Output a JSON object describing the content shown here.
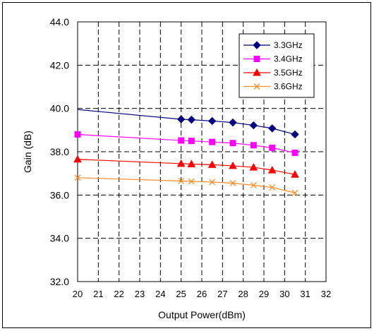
{
  "chart_data": {
    "type": "line",
    "title": "",
    "xlabel": "Output Power(dBm)",
    "ylabel": "Gain (dB)",
    "xlim": [
      20,
      32
    ],
    "ylim": [
      32.0,
      44.0
    ],
    "xticks": [
      "20",
      "21",
      "22",
      "23",
      "24",
      "25",
      "26",
      "27",
      "28",
      "29",
      "30",
      "31",
      "32"
    ],
    "yticks": [
      "32.0",
      "34.0",
      "36.0",
      "38.0",
      "40.0",
      "42.0",
      "44.0"
    ],
    "grid": true,
    "legend_position": "top-right",
    "series": [
      {
        "name": "3.3GHz",
        "color": "#000080",
        "marker": "diamond",
        "x": [
          20,
          25,
          25.5,
          26.5,
          27.5,
          28.5,
          29.4,
          30.5
        ],
        "y": [
          39.95,
          39.5,
          39.48,
          39.42,
          39.35,
          39.22,
          39.08,
          38.8
        ],
        "markers_at": [
          25,
          25.5,
          26.5,
          27.5,
          28.5,
          29.4,
          30.5
        ]
      },
      {
        "name": "3.4GHz",
        "color": "#ff00ff",
        "marker": "square",
        "x": [
          20,
          25,
          25.5,
          26.5,
          27.5,
          28.5,
          29.4,
          30.5
        ],
        "y": [
          38.8,
          38.52,
          38.5,
          38.45,
          38.4,
          38.3,
          38.18,
          37.95
        ],
        "markers_at": [
          20,
          25,
          25.5,
          26.5,
          27.5,
          28.5,
          29.4,
          30.5
        ]
      },
      {
        "name": "3.5GHz",
        "color": "#ff0000",
        "marker": "triangle",
        "x": [
          20,
          25,
          25.5,
          26.5,
          27.5,
          28.5,
          29.4,
          30.5
        ],
        "y": [
          37.65,
          37.45,
          37.43,
          37.4,
          37.35,
          37.28,
          37.15,
          36.95
        ],
        "markers_at": [
          20,
          25,
          25.5,
          26.5,
          27.5,
          28.5,
          29.4,
          30.5
        ]
      },
      {
        "name": "3.6GHz",
        "color": "#ff8c28",
        "marker": "x",
        "x": [
          20,
          25,
          25.5,
          26.5,
          27.5,
          28.5,
          29.4,
          30.5
        ],
        "y": [
          36.8,
          36.65,
          36.63,
          36.6,
          36.55,
          36.45,
          36.35,
          36.1
        ],
        "markers_at": [
          20,
          25,
          25.5,
          26.5,
          27.5,
          28.5,
          29.4,
          30.5
        ]
      }
    ]
  }
}
